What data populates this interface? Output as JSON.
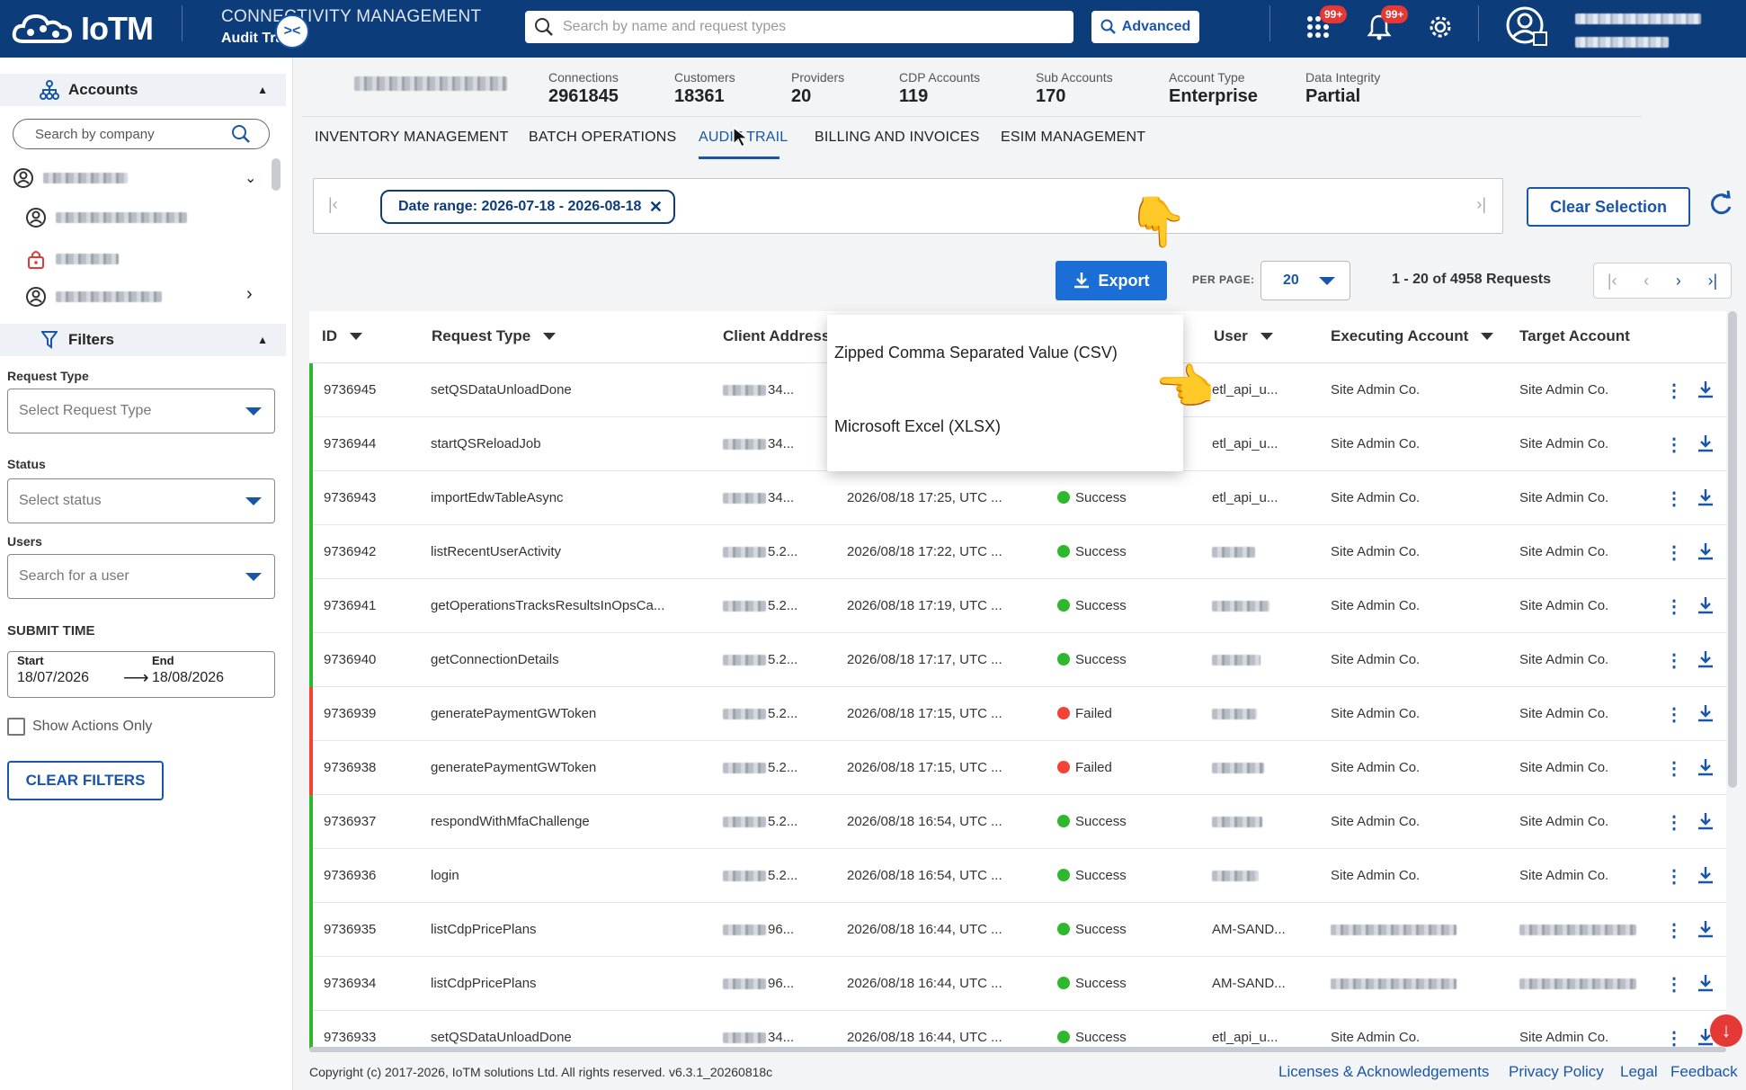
{
  "header": {
    "logo_text": "IoTM",
    "module_title": "CONNECTIVITY MANAGEMENT",
    "module_subtitle": "Audit Trail",
    "search_placeholder": "Search by name and request types",
    "advanced_label": "Advanced",
    "apps_badge": "99+",
    "notifications_badge": "99+",
    "brand_color": "#0d3c7a",
    "icons": [
      "search-icon",
      "apps-grid-icon",
      "bell-icon",
      "gear-icon",
      "user-avatar-icon"
    ]
  },
  "sidebar": {
    "accounts_label": "Accounts",
    "company_search_placeholder": "Search by company",
    "filters_label": "Filters",
    "request_type_label": "Request Type",
    "request_type_placeholder": "Select Request Type",
    "status_label": "Status",
    "status_placeholder": "Select status",
    "users_label": "Users",
    "users_placeholder": "Search for a user",
    "submit_time_label": "SUBMIT TIME",
    "start_label": "Start",
    "start_value": "18/07/2026",
    "end_label": "End",
    "end_value": "18/08/2026",
    "show_actions_label": "Show Actions Only",
    "clear_filters_label": "CLEAR FILTERS"
  },
  "stats": [
    {
      "label": "Connections",
      "value": "2961845"
    },
    {
      "label": "Customers",
      "value": "18361"
    },
    {
      "label": "Providers",
      "value": "20"
    },
    {
      "label": "CDP Accounts",
      "value": "119"
    },
    {
      "label": "Sub Accounts",
      "value": "170"
    },
    {
      "label": "Account Type",
      "value": "Enterprise"
    },
    {
      "label": "Data Integrity",
      "value": "Partial"
    }
  ],
  "tabs": [
    {
      "label": "INVENTORY MANAGEMENT"
    },
    {
      "label": "BATCH OPERATIONS"
    },
    {
      "label": "AUDIT TRAIL",
      "active": true
    },
    {
      "label": "BILLING AND INVOICES"
    },
    {
      "label": "ESIM MANAGEMENT"
    }
  ],
  "toolbar": {
    "date_chip": "Date range: 2026-07-18 - 2026-08-18",
    "clear_selection": "Clear Selection",
    "export_label": "Export",
    "per_page_label": "PER PAGE:",
    "per_page_value": "20",
    "range_text": "1 - 20 of 4958 Requests"
  },
  "export_menu": {
    "option_csv": "Zipped Comma Separated Value (CSV)",
    "option_xlsx": "Microsoft Excel (XLSX)"
  },
  "table": {
    "columns": [
      "ID",
      "Request Type",
      "Client Address",
      "User",
      "Executing Account",
      "Target Account"
    ],
    "status_colors": {
      "Success": "#2eb82e",
      "Failed": "#f44336"
    },
    "rows": [
      {
        "id": "9736945",
        "type": "setQSDataUnloadDone",
        "addr": "34...",
        "time": "",
        "status": "",
        "user": "etl_api_u...",
        "exec": "Site Admin Co.",
        "target": "Site Admin Co."
      },
      {
        "id": "9736944",
        "type": "startQSReloadJob",
        "addr": "34...",
        "time": "",
        "status": "",
        "user": "etl_api_u...",
        "exec": "Site Admin Co.",
        "target": "Site Admin Co."
      },
      {
        "id": "9736943",
        "type": "importEdwTableAsync",
        "addr": "34...",
        "time": "2026/08/18 17:25, UTC ...",
        "status": "Success",
        "user": "etl_api_u...",
        "exec": "Site Admin Co.",
        "target": "Site Admin Co."
      },
      {
        "id": "9736942",
        "type": "listRecentUserActivity",
        "addr": "5.2...",
        "time": "2026/08/18 17:22, UTC ...",
        "status": "Success",
        "user": "",
        "exec": "Site Admin Co.",
        "target": "Site Admin Co."
      },
      {
        "id": "9736941",
        "type": "getOperationsTracksResultsInOpsCa...",
        "addr": "5.2...",
        "time": "2026/08/18 17:19, UTC ...",
        "status": "Success",
        "user": "",
        "exec": "Site Admin Co.",
        "target": "Site Admin Co."
      },
      {
        "id": "9736940",
        "type": "getConnectionDetails",
        "addr": "5.2...",
        "time": "2026/08/18 17:17, UTC ...",
        "status": "Success",
        "user": "",
        "exec": "Site Admin Co.",
        "target": "Site Admin Co."
      },
      {
        "id": "9736939",
        "type": "generatePaymentGWToken",
        "addr": "5.2...",
        "time": "2026/08/18 17:15, UTC ...",
        "status": "Failed",
        "user": "",
        "exec": "Site Admin Co.",
        "target": "Site Admin Co."
      },
      {
        "id": "9736938",
        "type": "generatePaymentGWToken",
        "addr": "5.2...",
        "time": "2026/08/18 17:15, UTC ...",
        "status": "Failed",
        "user": "",
        "exec": "Site Admin Co.",
        "target": "Site Admin Co."
      },
      {
        "id": "9736937",
        "type": "respondWithMfaChallenge",
        "addr": "5.2...",
        "time": "2026/08/18 16:54, UTC ...",
        "status": "Success",
        "user": "",
        "exec": "Site Admin Co.",
        "target": "Site Admin Co."
      },
      {
        "id": "9736936",
        "type": "login",
        "addr": "5.2...",
        "time": "2026/08/18 16:54, UTC ...",
        "status": "Success",
        "user": "",
        "exec": "Site Admin Co.",
        "target": "Site Admin Co."
      },
      {
        "id": "9736935",
        "type": "listCdpPricePlans",
        "addr": "96...",
        "time": "2026/08/18 16:44, UTC ...",
        "status": "Success",
        "user": "AM-SAND...",
        "exec": "",
        "target": ""
      },
      {
        "id": "9736934",
        "type": "listCdpPricePlans",
        "addr": "96...",
        "time": "2026/08/18 16:44, UTC ...",
        "status": "Success",
        "user": "AM-SAND...",
        "exec": "",
        "target": ""
      },
      {
        "id": "9736933",
        "type": "setQSDataUnloadDone",
        "addr": "34...",
        "time": "2026/08/18 16:44, UTC ...",
        "status": "Success",
        "user": "etl_api_u...",
        "exec": "Site Admin Co.",
        "target": "Site Admin Co."
      }
    ]
  },
  "footer": {
    "copyright": "Copyright (c) 2017-2026, IoTM solutions Ltd. All rights reserved. v6.3.1_20260818c",
    "licenses": "Licenses & Acknowledgements",
    "privacy": "Privacy Policy",
    "legal": "Legal",
    "feedback": "Feedback"
  }
}
